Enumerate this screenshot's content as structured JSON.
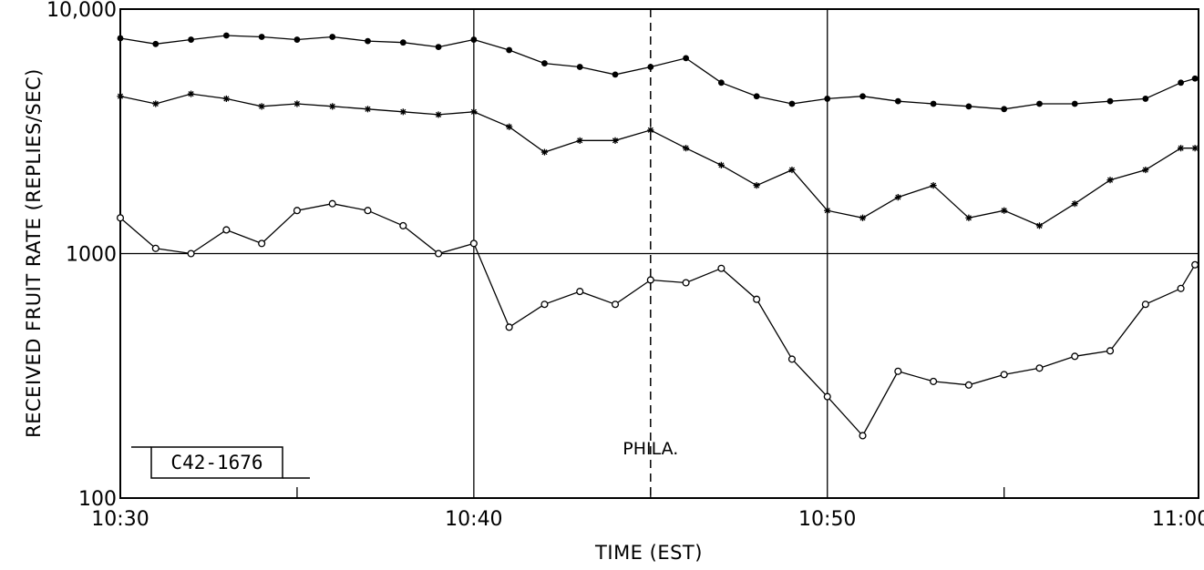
{
  "chart_data": {
    "type": "line",
    "title": "",
    "xlabel": "TIME (EST)",
    "ylabel": "RECEIVED FRUIT RATE (REPLIES/SEC)",
    "x_axis": {
      "unit": "minutes after 10:30 EST",
      "range": [
        0,
        30.5
      ],
      "ticks": [
        0,
        10,
        20,
        30
      ],
      "tick_labels": [
        "10:30",
        "10:40",
        "10:50",
        "11:00"
      ],
      "grid": true
    },
    "y_axis": {
      "scale": "log",
      "range": [
        100,
        10000
      ],
      "ticks": [
        100,
        1000,
        10000
      ],
      "tick_labels": [
        "100",
        "1000",
        "10,000"
      ],
      "grid": true
    },
    "annotations": [
      {
        "text": "PHILA.",
        "x": 15,
        "marker": "dashed vertical line"
      },
      {
        "text": "C42-1676",
        "marker": "boxed label"
      }
    ],
    "series": [
      {
        "marker": "filled-circle",
        "x": [
          0,
          1,
          2,
          3,
          4,
          5,
          6,
          7,
          8,
          9,
          10,
          11,
          12,
          13,
          14,
          15,
          16,
          17,
          18,
          19,
          20,
          21,
          22,
          23,
          24,
          25,
          26,
          27,
          28,
          29,
          30,
          30.4
        ],
        "y": [
          7600,
          7200,
          7500,
          7800,
          7700,
          7500,
          7700,
          7400,
          7300,
          7000,
          7500,
          6800,
          6000,
          5800,
          5400,
          5800,
          6300,
          5000,
          4400,
          4100,
          4300,
          4400,
          4200,
          4100,
          4000,
          3900,
          4100,
          4100,
          4200,
          4300,
          5000,
          5200
        ]
      },
      {
        "marker": "star",
        "x": [
          0,
          1,
          2,
          3,
          4,
          5,
          6,
          7,
          8,
          9,
          10,
          11,
          12,
          13,
          14,
          15,
          16,
          17,
          18,
          19,
          20,
          21,
          22,
          23,
          24,
          25,
          26,
          27,
          28,
          29,
          30,
          30.4
        ],
        "y": [
          4400,
          4100,
          4500,
          4300,
          4000,
          4100,
          4000,
          3900,
          3800,
          3700,
          3800,
          3300,
          2600,
          2900,
          2900,
          3200,
          2700,
          2300,
          1900,
          2200,
          1500,
          1400,
          1700,
          1900,
          1400,
          1500,
          1300,
          1600,
          2000,
          2200,
          2700,
          2700
        ]
      },
      {
        "marker": "open-circle",
        "x": [
          0,
          1,
          2,
          3,
          4,
          5,
          6,
          7,
          8,
          9,
          10,
          11,
          12,
          13,
          14,
          15,
          16,
          17,
          18,
          19,
          20,
          21,
          22,
          23,
          24,
          25,
          26,
          27,
          28,
          29,
          30,
          30.4
        ],
        "y": [
          1400,
          1050,
          1000,
          1250,
          1100,
          1500,
          1600,
          1500,
          1300,
          1000,
          1100,
          500,
          620,
          700,
          620,
          780,
          760,
          870,
          650,
          370,
          260,
          180,
          330,
          300,
          290,
          320,
          340,
          380,
          400,
          620,
          720,
          900
        ]
      }
    ]
  }
}
